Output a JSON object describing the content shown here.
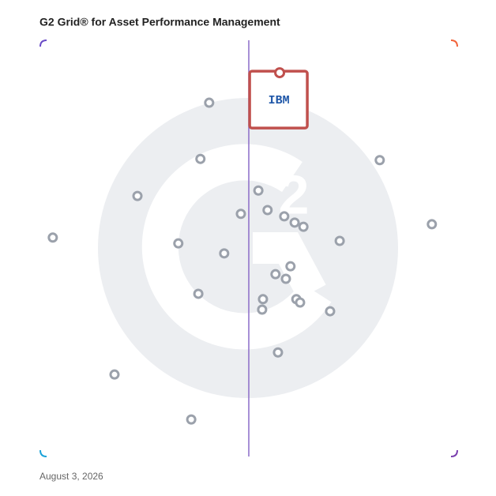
{
  "chart_data": {
    "type": "scatter",
    "title": "G2 Grid® for Asset Performance Management",
    "footnote": "August 3, 2026",
    "x": [
      40.5,
      38.4,
      23.3,
      3.0,
      33.1,
      44.1,
      48.1,
      52.3,
      54.5,
      58.5,
      61.0,
      63.1,
      71.8,
      81.4,
      93.9,
      60.0,
      56.4,
      58.9,
      37.9,
      53.4,
      53.2,
      61.4,
      62.3,
      69.5,
      57.0,
      17.8,
      36.2
    ],
    "y": [
      85.0,
      71.5,
      62.6,
      52.6,
      51.2,
      48.8,
      58.3,
      63.9,
      59.2,
      57.7,
      56.2,
      55.2,
      51.8,
      71.2,
      55.8,
      45.7,
      43.8,
      42.7,
      39.1,
      37.8,
      35.3,
      37.8,
      37.0,
      34.9,
      25.0,
      19.7,
      8.9
    ],
    "color": "#9ba1ab",
    "highlight": {
      "label": "IBM",
      "x": 57.4,
      "y": 92.2,
      "color": "#c0504d"
    },
    "xlim": [
      0,
      100
    ],
    "ylim": [
      0,
      100
    ],
    "quadrants": true
  }
}
